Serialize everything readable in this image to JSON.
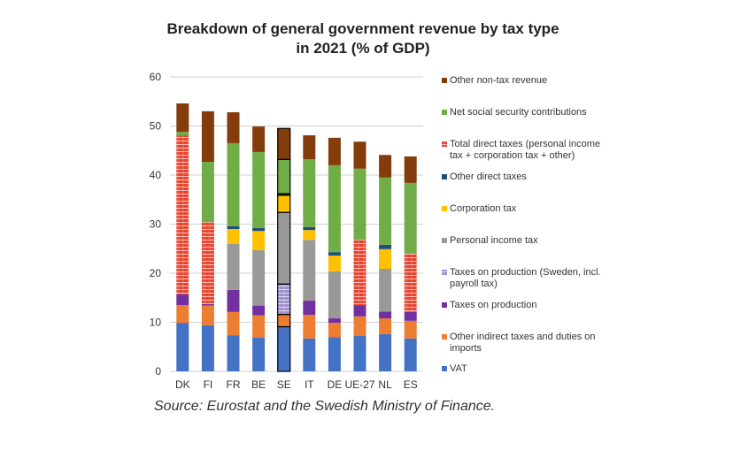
{
  "chart_data": {
    "type": "bar",
    "stacked": true,
    "title": "Breakdown of general government revenue by tax type in 2021 (% of GDP)",
    "title_lines": [
      "Breakdown of general government revenue by tax type",
      "in 2021 (% of GDP)"
    ],
    "xlabel": "",
    "ylabel": "",
    "ylim": [
      0,
      60
    ],
    "yticks": [
      0,
      10,
      20,
      30,
      40,
      50,
      60
    ],
    "grid": true,
    "legend_position": "right",
    "categories": [
      "DK",
      "FI",
      "FR",
      "BE",
      "SE",
      "IT",
      "DE",
      "UE-27",
      "NL",
      "ES"
    ],
    "highlighted_category": "SE",
    "series": [
      {
        "name": "VAT",
        "color": "#4472C4",
        "pattern": "none",
        "values": [
          9.9,
          9.4,
          7.3,
          6.9,
          9.1,
          6.7,
          7.0,
          7.2,
          7.6,
          6.7
        ]
      },
      {
        "name": "Other indirect taxes and duties on imports",
        "color": "#ED7D31",
        "pattern": "none",
        "values": [
          3.6,
          4.0,
          4.8,
          4.5,
          2.5,
          4.8,
          2.9,
          4.0,
          3.2,
          3.6
        ]
      },
      {
        "name": "Taxes on production",
        "color": "#7030A0",
        "pattern": "none",
        "values": [
          2.2,
          0.3,
          4.5,
          2.0,
          0,
          2.9,
          0.9,
          2.3,
          1.4,
          1.8
        ]
      },
      {
        "name": "Taxes on production (Sweden, incl. payroll tax)",
        "color": "#9E8FD0",
        "pattern": "bricks",
        "values": [
          0,
          0,
          0,
          0,
          6.2,
          0,
          0,
          0,
          0,
          0
        ]
      },
      {
        "name": "Personal income tax",
        "color": "#999999",
        "pattern": "none",
        "values": [
          0,
          0,
          9.4,
          11.3,
          14.6,
          12.4,
          9.6,
          0,
          8.7,
          0
        ]
      },
      {
        "name": "Corporation tax",
        "color": "#FFC000",
        "pattern": "none",
        "values": [
          0,
          0,
          3.0,
          3.9,
          3.5,
          2.0,
          3.2,
          0,
          4.0,
          0
        ]
      },
      {
        "name": "Other direct taxes",
        "color": "#1F4E79",
        "pattern": "none",
        "values": [
          0,
          0,
          0.6,
          0.6,
          0.3,
          0.6,
          0.7,
          0,
          0.9,
          0
        ]
      },
      {
        "name": "Total direct taxes (personal income tax + corporation tax + other)",
        "color": "#E8432D",
        "pattern": "bricks",
        "values": [
          32.4,
          16.7,
          0,
          0,
          0,
          0,
          0,
          13.3,
          0,
          11.9
        ]
      },
      {
        "name": "Net social security contributions",
        "color": "#70AD47",
        "pattern": "none",
        "values": [
          0.7,
          12.3,
          16.9,
          15.5,
          7.0,
          13.8,
          17.7,
          14.5,
          13.7,
          14.4
        ]
      },
      {
        "name": "Other non-tax revenue",
        "color": "#843C0C",
        "pattern": "none",
        "values": [
          5.8,
          10.3,
          6.3,
          5.2,
          6.3,
          4.9,
          5.6,
          5.5,
          4.6,
          5.4
        ]
      }
    ],
    "legend_order": [
      {
        "label_lines": [
          "Other non-tax revenue"
        ],
        "series_index": 9
      },
      {
        "label_lines": [
          "Net social security contributions"
        ],
        "series_index": 8
      },
      {
        "label_lines": [
          "Total direct taxes (personal income",
          "tax + corporation tax + other)"
        ],
        "series_index": 7
      },
      {
        "label_lines": [
          "Other direct taxes"
        ],
        "series_index": 6
      },
      {
        "label_lines": [
          "Corporation tax"
        ],
        "series_index": 5
      },
      {
        "label_lines": [
          "Personal income tax"
        ],
        "series_index": 4
      },
      {
        "label_lines": [
          "Taxes on production (Sweden, incl.",
          "payroll tax)"
        ],
        "series_index": 3
      },
      {
        "label_lines": [
          "Taxes on production"
        ],
        "series_index": 2
      },
      {
        "label_lines": [
          "Other indirect taxes and duties on",
          "imports"
        ],
        "series_index": 1
      },
      {
        "label_lines": [
          "VAT"
        ],
        "series_index": 0
      }
    ],
    "source": "Source: Eurostat and the Swedish Ministry of Finance."
  }
}
